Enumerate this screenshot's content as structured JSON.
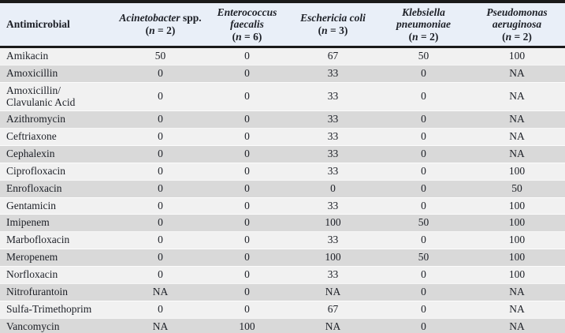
{
  "colors": {
    "page-bg": "#ffffff",
    "header-bg": "#e9eff8",
    "row-light": "#f1f1f1",
    "row-dark": "#d9d9d9",
    "rule-black": "#1a1a1a",
    "text": "#1c1f26"
  },
  "table": {
    "header": {
      "antimicrobial_label": "Antimicrobial",
      "columns": [
        {
          "name": "Acinetobacter",
          "name_suffix": " spp.",
          "n_open": "(",
          "n_italic": "n",
          "n_rest": " = 2)"
        },
        {
          "name": "Enterococcus faecalis",
          "name_suffix": "",
          "n_open": "(",
          "n_italic": "n",
          "n_rest": " = 6)"
        },
        {
          "name": "Eschericia coli",
          "name_suffix": "",
          "n_open": "(",
          "n_italic": "n",
          "n_rest": " = 3)"
        },
        {
          "name": "Klebsiella pneumoniae",
          "name_suffix": "",
          "n_open": "(",
          "n_italic": "n",
          "n_rest": " = 2)"
        },
        {
          "name": "Pseudomonas aeruginosa",
          "name_suffix": "",
          "n_open": "(",
          "n_italic": "n",
          "n_rest": " = 2)"
        }
      ]
    },
    "rows": [
      {
        "label": "Amikacin",
        "values": [
          "50",
          "0",
          "67",
          "50",
          "100"
        ]
      },
      {
        "label": "Amoxicillin",
        "values": [
          "0",
          "0",
          "33",
          "0",
          "NA"
        ]
      },
      {
        "label": "Amoxicillin/\nClavulanic Acid",
        "values": [
          "0",
          "0",
          "33",
          "0",
          "NA"
        ]
      },
      {
        "label": "Azithromycin",
        "values": [
          "0",
          "0",
          "33",
          "0",
          "NA"
        ]
      },
      {
        "label": "Ceftriaxone",
        "values": [
          "0",
          "0",
          "33",
          "0",
          "NA"
        ]
      },
      {
        "label": "Cephalexin",
        "values": [
          "0",
          "0",
          "33",
          "0",
          "NA"
        ]
      },
      {
        "label": "Ciprofloxacin",
        "values": [
          "0",
          "0",
          "33",
          "0",
          "100"
        ]
      },
      {
        "label": "Enrofloxacin",
        "values": [
          "0",
          "0",
          "0",
          "0",
          "50"
        ]
      },
      {
        "label": "Gentamicin",
        "values": [
          "0",
          "0",
          "33",
          "0",
          "100"
        ]
      },
      {
        "label": "Imipenem",
        "values": [
          "0",
          "0",
          "100",
          "50",
          "100"
        ]
      },
      {
        "label": "Marbofloxacin",
        "values": [
          "0",
          "0",
          "33",
          "0",
          "100"
        ]
      },
      {
        "label": "Meropenem",
        "values": [
          "0",
          "0",
          "100",
          "50",
          "100"
        ]
      },
      {
        "label": "Norfloxacin",
        "values": [
          "0",
          "0",
          "33",
          "0",
          "100"
        ]
      },
      {
        "label": "Nitrofurantoin",
        "values": [
          "NA",
          "0",
          "NA",
          "0",
          "NA"
        ]
      },
      {
        "label": "Sulfa-Trimethoprim",
        "values": [
          "0",
          "0",
          "67",
          "0",
          "NA"
        ]
      },
      {
        "label": "Vancomycin",
        "values": [
          "NA",
          "100",
          "NA",
          "0",
          "NA"
        ]
      }
    ]
  }
}
